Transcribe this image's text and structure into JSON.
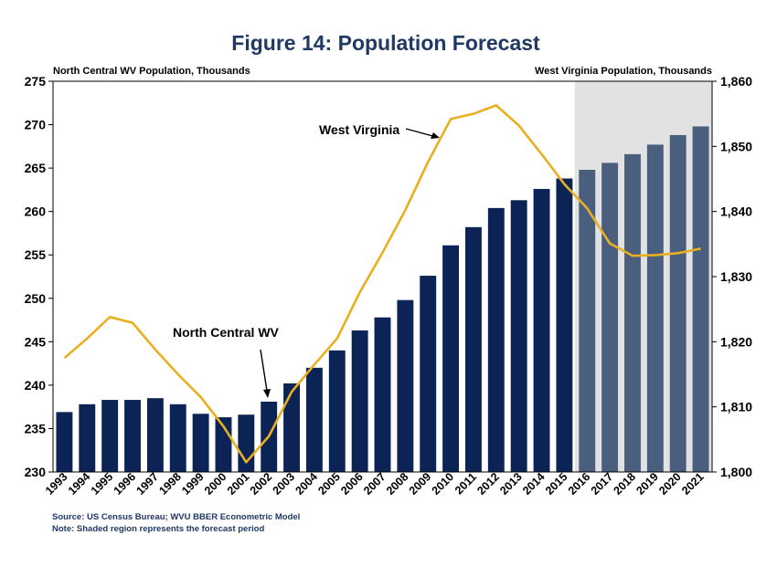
{
  "chart_data": {
    "type": "bar",
    "title": "Figure 14: Population Forecast",
    "left_axis_title": "North Central WV Population, Thousands",
    "right_axis_title": "West Virginia Population, Thousands",
    "categories": [
      "1993",
      "1994",
      "1995",
      "1996",
      "1997",
      "1998",
      "1999",
      "2000",
      "2001",
      "2002",
      "2003",
      "2004",
      "2005",
      "2006",
      "2007",
      "2008",
      "2009",
      "2010",
      "2011",
      "2012",
      "2013",
      "2014",
      "2015",
      "2016",
      "2017",
      "2018",
      "2019",
      "2020",
      "2021"
    ],
    "left_ylim": [
      230,
      275
    ],
    "left_ticks": [
      "230",
      "235",
      "240",
      "245",
      "250",
      "255",
      "260",
      "265",
      "270",
      "275"
    ],
    "right_ylim": [
      1800,
      1860
    ],
    "right_ticks": [
      "1,800",
      "1,810",
      "1,820",
      "1,830",
      "1,840",
      "1,850",
      "1,860"
    ],
    "series": [
      {
        "name": "North Central WV",
        "type": "bar",
        "axis": "left",
        "values": [
          236.9,
          237.8,
          238.3,
          238.3,
          238.5,
          237.8,
          236.7,
          236.3,
          236.6,
          238.1,
          240.2,
          242.0,
          244.0,
          246.3,
          247.8,
          249.8,
          252.6,
          256.1,
          258.2,
          260.4,
          261.3,
          262.6,
          263.8,
          264.8,
          265.6,
          266.6,
          267.7,
          268.8,
          269.8
        ]
      },
      {
        "name": "West Virginia",
        "type": "line",
        "axis": "right",
        "color": "#e8b020",
        "values": [
          1817.5,
          1820.5,
          1823.8,
          1822.9,
          1818.8,
          1815.0,
          1811.5,
          1807.0,
          1801.5,
          1805.5,
          1812.3,
          1816.5,
          1820.5,
          1827.6,
          1833.7,
          1840.2,
          1847.6,
          1854.2,
          1855.0,
          1856.3,
          1853.2,
          1848.8,
          1844.2,
          1840.5,
          1835.1,
          1833.2,
          1833.3,
          1833.6,
          1834.3
        ]
      }
    ],
    "forecast_start": "2016",
    "bar_color_historical": "#0c2356",
    "bar_color_forecast": "#4a5e7e",
    "forecast_shade_color": "#e2e2e2",
    "annotations": [
      {
        "text": "West Virginia"
      },
      {
        "text": "North Central WV"
      }
    ]
  },
  "footnotes": {
    "source": "Source: US Census Bureau; WVU BBER Econometric Model",
    "note": "Note: Shaded region represents the forecast period"
  }
}
